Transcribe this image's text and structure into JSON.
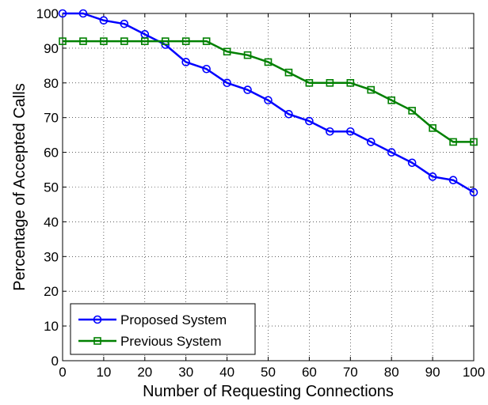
{
  "chart_data": {
    "type": "line",
    "xlabel": "Number of Requesting Connections",
    "ylabel": "Percentage of Accepted Calls",
    "xlim": [
      0,
      100
    ],
    "ylim": [
      0,
      100
    ],
    "xticks": [
      "0",
      "10",
      "20",
      "30",
      "40",
      "50",
      "60",
      "70",
      "80",
      "90",
      "100"
    ],
    "yticks": [
      "0",
      "10",
      "20",
      "30",
      "40",
      "50",
      "60",
      "70",
      "80",
      "90",
      "100"
    ],
    "grid": true,
    "legend_position": "bottom-left",
    "x": [
      0,
      5,
      10,
      15,
      20,
      25,
      30,
      35,
      40,
      45,
      50,
      55,
      60,
      65,
      70,
      75,
      80,
      85,
      90,
      95,
      100
    ],
    "series": [
      {
        "name": "Proposed System",
        "color": "#0000ff",
        "marker": "circle",
        "values": [
          100,
          100,
          98,
          97,
          94,
          91,
          86,
          84,
          80,
          78,
          75,
          71,
          69,
          66,
          66,
          63,
          60,
          57,
          53,
          52,
          48.5
        ]
      },
      {
        "name": "Previous System",
        "color": "#008000",
        "marker": "square",
        "values": [
          92,
          92,
          92,
          92,
          92,
          92,
          92,
          92,
          89,
          88,
          86,
          83,
          80,
          80,
          80,
          78,
          75,
          72,
          67,
          63,
          63
        ]
      }
    ]
  }
}
